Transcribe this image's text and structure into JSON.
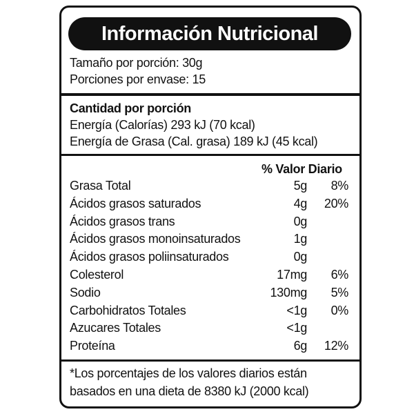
{
  "header": {
    "title": "Información Nutricional"
  },
  "serving": {
    "size": "Tamaño por porción: 30g",
    "per_container": "Porciones por envase: 15"
  },
  "energy": {
    "header": "Cantidad por porción",
    "calories": "Energía (Calorías) 293 kJ (70 kcal)",
    "fat_calories": "Energía de Grasa (Cal. grasa) 189 kJ (45 kcal)"
  },
  "table": {
    "header": "% Valor Diario",
    "rows": [
      {
        "name": "Grasa Total",
        "amount": "5g",
        "dv": "8%"
      },
      {
        "name": "Ácidos grasos saturados",
        "amount": "4g",
        "dv": "20%"
      },
      {
        "name": "Ácidos grasos trans",
        "amount": "0g"
      },
      {
        "name": "Ácidos grasos monoinsaturados",
        "amount": "1g"
      },
      {
        "name": "Ácidos grasos poliinsaturados",
        "amount": "0g"
      },
      {
        "name": "Colesterol",
        "amount": "17mg",
        "dv": "6%"
      },
      {
        "name": "Sodio",
        "amount": "130mg",
        "dv": "5%"
      },
      {
        "name": "Carbohidratos Totales",
        "amount": "<1g",
        "dv": "0%"
      },
      {
        "name": "Azucares Totales",
        "amount": "<1g"
      },
      {
        "name": "Proteína",
        "amount": "6g",
        "dv": "12%"
      }
    ]
  },
  "footnote": [
    "*Los porcentajes de los valores diarios están",
    "basados en una dieta de 8380 kJ (2000 kcal)"
  ]
}
